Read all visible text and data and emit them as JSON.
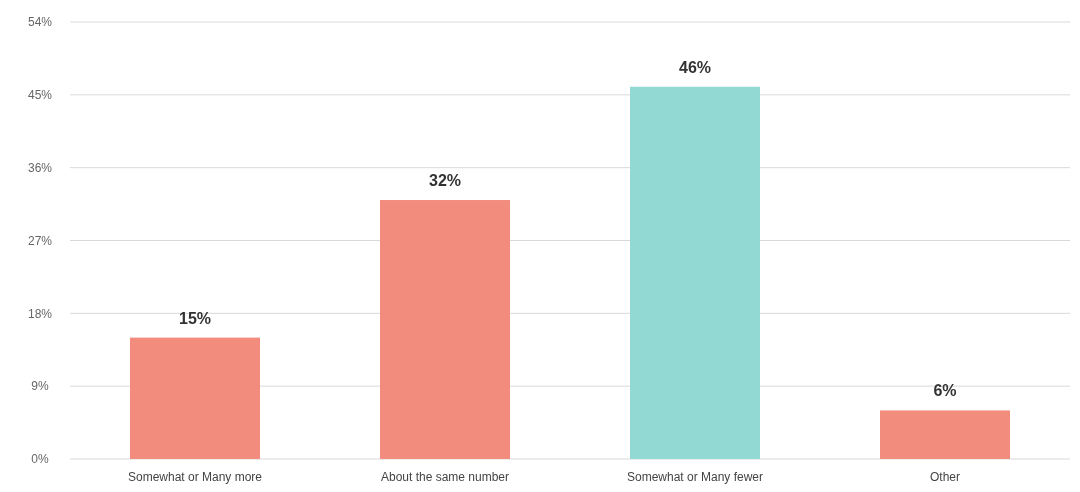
{
  "chart_data": {
    "type": "bar",
    "categories": [
      "Somewhat or Many more",
      "About the same number",
      "Somewhat or Many fewer",
      "Other"
    ],
    "values": [
      15,
      32,
      46,
      6
    ],
    "colors": [
      "#f28c7c",
      "#f28c7c",
      "#92d9d4",
      "#f28c7c"
    ],
    "value_labels": [
      "15%",
      "32%",
      "46%",
      "6%"
    ],
    "ylim": [
      0,
      54
    ],
    "yticks": [
      {
        "value": 0,
        "label": "0%"
      },
      {
        "value": 9,
        "label": "9%"
      },
      {
        "value": 18,
        "label": "18%"
      },
      {
        "value": 27,
        "label": "27%"
      },
      {
        "value": 36,
        "label": "36%"
      },
      {
        "value": 45,
        "label": "45%"
      },
      {
        "value": 54,
        "label": "54%"
      }
    ],
    "grid": "y"
  }
}
